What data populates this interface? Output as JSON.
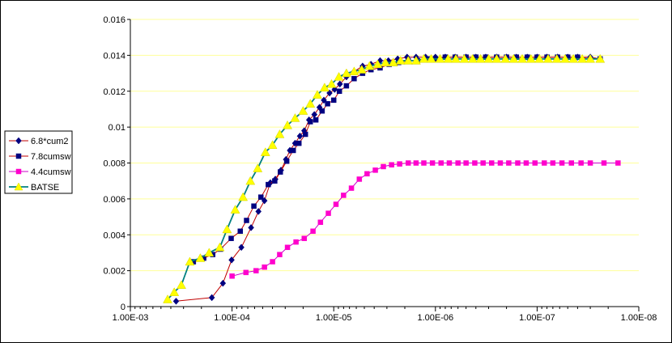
{
  "chart_data": {
    "type": "line",
    "title": "",
    "xlabel": "",
    "ylabel": "",
    "x_scale": "log",
    "x_reversed": true,
    "xlim": [
      0.001,
      1e-08
    ],
    "ylim": [
      0,
      0.016
    ],
    "x_ticks": [
      0.001,
      0.0001,
      1e-05,
      1e-06,
      1e-07,
      1e-08
    ],
    "x_tick_labels": [
      "1.00E-03",
      "1.00E-04",
      "1.00E-05",
      "1.00E-06",
      "1.00E-07",
      "1.00E-08"
    ],
    "y_ticks": [
      0,
      0.002,
      0.004,
      0.006,
      0.008,
      0.01,
      0.012,
      0.014,
      0.016
    ],
    "y_tick_labels": [
      "0",
      "0.002",
      "0.004",
      "0.006",
      "0.008",
      "0.01",
      "0.012",
      "0.014",
      "0.016"
    ],
    "grid": "horizontal",
    "legend_position": "left",
    "series": [
      {
        "name": "6.8*cum2",
        "color": "#000080",
        "line_color": "#c00000",
        "marker": "diamond",
        "x": [
          0.000355,
          0.000158,
          0.000123,
          0.000101,
          8.1e-05,
          6.5e-05,
          5.5e-05,
          4.8e-05,
          4.2e-05,
          3.75e-05,
          3.3e-05,
          2.95e-05,
          2.7e-05,
          2.4e-05,
          2.15e-05,
          1.95e-05,
          1.75e-05,
          1.55e-05,
          1.38e-05,
          1.25e-05,
          1.1e-05,
          9.8e-06,
          8.7e-06,
          7.5e-06,
          6.3e-06,
          5.2e-06,
          4.3e-06,
          3.5e-06,
          2.9e-06,
          2.35e-06,
          1.9e-06,
          1.55e-06,
          1.25e-06,
          1e-06,
          8e-07,
          6.4e-07,
          5e-07,
          4e-07,
          3.2e-07,
          2.5e-07,
          2e-07,
          1.6e-07,
          1.25e-07,
          1e-07,
          8e-08,
          6.3e-08,
          5e-08,
          4e-08,
          3e-08,
          2.4e-08
        ],
        "y": [
          0.0003,
          0.0005,
          0.0013,
          0.0026,
          0.0033,
          0.0044,
          0.0053,
          0.0059,
          0.0069,
          0.0071,
          0.0076,
          0.0082,
          0.0087,
          0.0091,
          0.0095,
          0.0098,
          0.0104,
          0.0107,
          0.0111,
          0.0115,
          0.0119,
          0.0121,
          0.0124,
          0.0128,
          0.0131,
          0.0134,
          0.0135,
          0.0137,
          0.0137,
          0.0138,
          0.0139,
          0.0139,
          0.0139,
          0.0139,
          0.0139,
          0.0139,
          0.0139,
          0.0139,
          0.0139,
          0.0139,
          0.0139,
          0.0139,
          0.0139,
          0.0139,
          0.0139,
          0.0139,
          0.0139,
          0.0139,
          0.0139,
          0.0138
        ]
      },
      {
        "name": "7.8cumsw",
        "color": "#000080",
        "line_color": "#c00000",
        "marker": "square",
        "x": [
          0.00024,
          0.00019,
          0.000155,
          0.00013,
          0.000102,
          8.3e-05,
          7.2e-05,
          6.1e-05,
          5.2e-05,
          4.4e-05,
          3.8e-05,
          3.35e-05,
          2.9e-05,
          2.5e-05,
          2.2e-05,
          1.9e-05,
          1.7e-05,
          1.5e-05,
          1.3e-05,
          1.15e-05,
          1e-05,
          8.8e-06,
          7.5e-06,
          6.3e-06,
          5.2e-06,
          4.3e-06,
          3.5e-06,
          2.85e-06,
          2.3e-06,
          1.85e-06,
          1.5e-06,
          1.2e-06,
          1e-06,
          8e-07,
          6.4e-07,
          5e-07,
          4e-07,
          3.2e-07,
          2.5e-07,
          2e-07,
          1.6e-07,
          1.25e-07,
          1e-07,
          8e-08,
          6.3e-08,
          5e-08,
          4e-08,
          3e-08,
          2.4e-08
        ],
        "y": [
          0.0025,
          0.0027,
          0.0029,
          0.0032,
          0.0038,
          0.0042,
          0.0048,
          0.0056,
          0.0061,
          0.0068,
          0.007,
          0.0075,
          0.0081,
          0.0087,
          0.0091,
          0.0096,
          0.0103,
          0.0104,
          0.0109,
          0.0113,
          0.0115,
          0.012,
          0.0123,
          0.0127,
          0.013,
          0.0132,
          0.0133,
          0.0135,
          0.0136,
          0.0137,
          0.0137,
          0.0138,
          0.0138,
          0.0139,
          0.0139,
          0.0139,
          0.0139,
          0.0139,
          0.0139,
          0.0139,
          0.0139,
          0.0139,
          0.0139,
          0.0139,
          0.0139,
          0.0139,
          0.0139,
          0.0138,
          0.0138
        ]
      },
      {
        "name": "4.4cumsw",
        "color": "#ff00cc",
        "line_color": "#cc00cc",
        "marker": "square",
        "x": [
          0.0001,
          7.3e-05,
          5.8e-05,
          4.8e-05,
          4e-05,
          3.4e-05,
          2.85e-05,
          2.35e-05,
          1.95e-05,
          1.6e-05,
          1.35e-05,
          1.13e-05,
          9.5e-06,
          8e-06,
          6.7e-06,
          5.6e-06,
          4.7e-06,
          3.9e-06,
          3.25e-06,
          2.7e-06,
          2.25e-06,
          1.85e-06,
          1.55e-06,
          1.3e-06,
          1.07e-06,
          8.8e-07,
          7.3e-07,
          6e-07,
          5e-07,
          4.1e-07,
          3.4e-07,
          2.8e-07,
          2.3e-07,
          1.9e-07,
          1.55e-07,
          1.28e-07,
          1.05e-07,
          8.5e-08,
          7e-08,
          5.7e-08,
          4.6e-08,
          3.7e-08,
          3e-08,
          2.2e-08,
          1.6e-08
        ],
        "y": [
          0.0017,
          0.0019,
          0.002,
          0.0022,
          0.0025,
          0.0029,
          0.0033,
          0.0036,
          0.0038,
          0.0042,
          0.0047,
          0.0052,
          0.0057,
          0.0062,
          0.0066,
          0.0071,
          0.0074,
          0.0076,
          0.0078,
          0.0079,
          0.00795,
          0.008,
          0.008,
          0.008,
          0.008,
          0.008,
          0.008,
          0.008,
          0.008,
          0.008,
          0.008,
          0.008,
          0.008,
          0.008,
          0.008,
          0.008,
          0.008,
          0.008,
          0.008,
          0.008,
          0.008,
          0.008,
          0.008,
          0.008,
          0.008
        ]
      },
      {
        "name": "BATSE",
        "color": "#ffff00",
        "line_color": "#008080",
        "marker": "triangle",
        "x": [
          0.00043,
          0.00037,
          0.000315,
          0.00026,
          0.000205,
          0.000168,
          0.000132,
          0.000112,
          9.3e-05,
          7.8e-05,
          6.6e-05,
          5.6e-05,
          4.7e-05,
          4e-05,
          3.4e-05,
          2.85e-05,
          2.4e-05,
          2e-05,
          1.7e-05,
          1.45e-05,
          1.23e-05,
          1.05e-05,
          8.9e-06,
          7.5e-06,
          6.3e-06,
          5.3e-06,
          4.45e-06,
          3.7e-06,
          3.1e-06,
          2.6e-06,
          2.2e-06,
          1.85e-06,
          1.55e-06,
          1.3e-06,
          1.1e-06,
          9e-07,
          7.5e-07,
          6.3e-07,
          5.2e-07,
          4.3e-07,
          3.6e-07,
          3e-07,
          2.5e-07,
          2.05e-07,
          1.7e-07,
          1.4e-07,
          1.15e-07,
          9.5e-08,
          7.8e-08,
          6.4e-08,
          5.3e-08,
          4.4e-08,
          3.6e-08,
          3e-08,
          2.4e-08
        ],
        "y": [
          0.0004,
          0.0008,
          0.0012,
          0.0025,
          0.0027,
          0.003,
          0.0033,
          0.0043,
          0.0054,
          0.0061,
          0.007,
          0.0077,
          0.0086,
          0.009,
          0.0096,
          0.0101,
          0.0105,
          0.0109,
          0.0113,
          0.0118,
          0.0122,
          0.0124,
          0.0128,
          0.013,
          0.0131,
          0.0132,
          0.0134,
          0.0135,
          0.0136,
          0.0136,
          0.0137,
          0.0137,
          0.0137,
          0.0138,
          0.0138,
          0.0138,
          0.0138,
          0.0138,
          0.0138,
          0.0138,
          0.0138,
          0.0138,
          0.0138,
          0.0138,
          0.0138,
          0.0138,
          0.0138,
          0.0138,
          0.0138,
          0.0138,
          0.0138,
          0.0138,
          0.0138,
          0.0138,
          0.0138
        ]
      }
    ]
  }
}
